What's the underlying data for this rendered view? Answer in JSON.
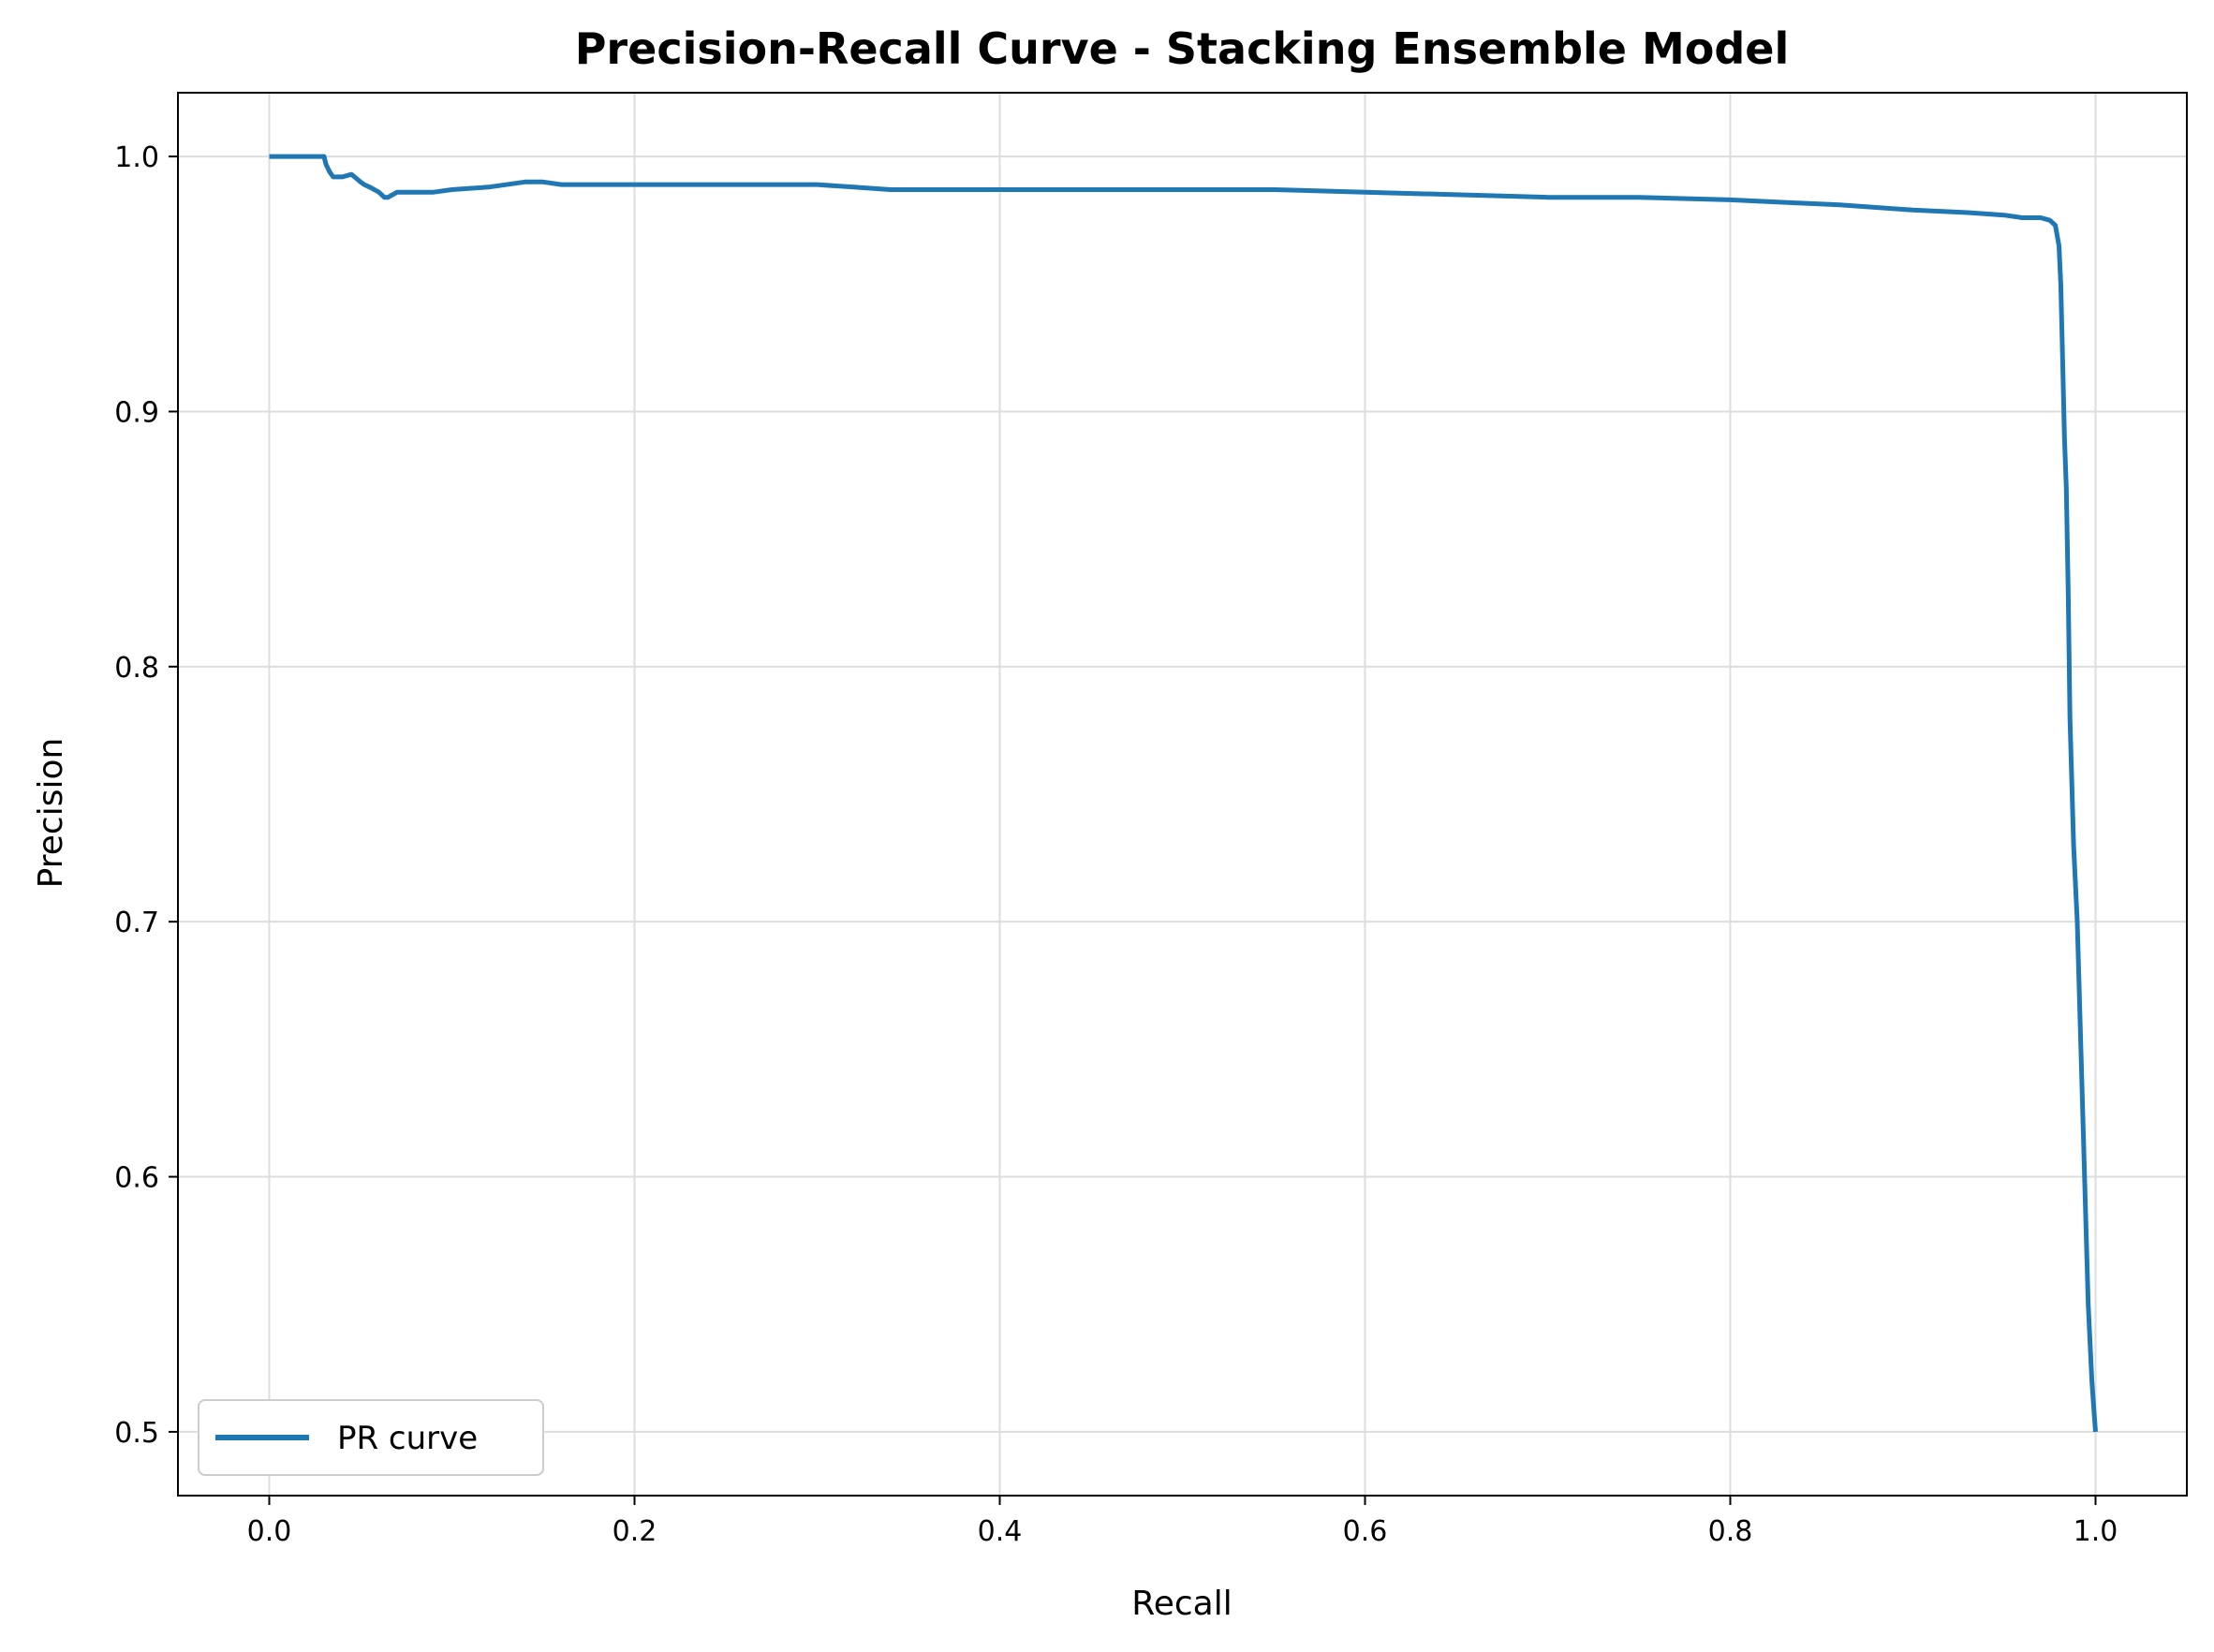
{
  "chart_data": {
    "type": "line",
    "title": "Precision-Recall Curve - Stacking Ensemble Model",
    "xlabel": "Recall",
    "ylabel": "Precision",
    "xlim": [
      -0.05,
      1.05
    ],
    "ylim": [
      0.475,
      1.025
    ],
    "x_ticks": [
      0.0,
      0.2,
      0.4,
      0.6,
      0.8,
      1.0
    ],
    "x_tick_labels": [
      "0.0",
      "0.2",
      "0.4",
      "0.6",
      "0.8",
      "1.0"
    ],
    "y_ticks": [
      0.5,
      0.6,
      0.7,
      0.8,
      0.9,
      1.0
    ],
    "y_tick_labels": [
      "0.5",
      "0.6",
      "0.7",
      "0.8",
      "0.9",
      "1.0"
    ],
    "grid": true,
    "legend": {
      "placement": "lower-left",
      "entries": [
        "PR curve"
      ]
    },
    "series": [
      {
        "name": "PR curve",
        "color": "#1f77b4",
        "x": [
          0.0,
          0.01,
          0.02,
          0.03,
          0.031,
          0.033,
          0.035,
          0.04,
          0.045,
          0.05,
          0.052,
          0.055,
          0.06,
          0.063,
          0.065,
          0.07,
          0.08,
          0.09,
          0.1,
          0.12,
          0.14,
          0.15,
          0.16,
          0.18,
          0.2,
          0.22,
          0.24,
          0.26,
          0.28,
          0.3,
          0.32,
          0.34,
          0.36,
          0.38,
          0.4,
          0.42,
          0.45,
          0.48,
          0.5,
          0.55,
          0.6,
          0.65,
          0.7,
          0.75,
          0.8,
          0.83,
          0.86,
          0.9,
          0.93,
          0.95,
          0.96,
          0.97,
          0.975,
          0.978,
          0.98,
          0.981,
          0.982,
          0.983,
          0.984,
          0.985,
          0.986,
          0.988,
          0.99,
          0.992,
          0.994,
          0.996,
          0.998,
          0.999,
          1.0
        ],
        "y": [
          1.0,
          1.0,
          1.0,
          1.0,
          0.997,
          0.994,
          0.992,
          0.992,
          0.993,
          0.99,
          0.989,
          0.988,
          0.986,
          0.984,
          0.984,
          0.986,
          0.986,
          0.986,
          0.987,
          0.988,
          0.99,
          0.99,
          0.989,
          0.989,
          0.989,
          0.989,
          0.989,
          0.989,
          0.989,
          0.989,
          0.988,
          0.987,
          0.987,
          0.987,
          0.987,
          0.987,
          0.987,
          0.987,
          0.987,
          0.987,
          0.986,
          0.985,
          0.984,
          0.984,
          0.983,
          0.982,
          0.981,
          0.979,
          0.978,
          0.977,
          0.976,
          0.976,
          0.975,
          0.973,
          0.965,
          0.95,
          0.92,
          0.89,
          0.87,
          0.83,
          0.78,
          0.73,
          0.7,
          0.65,
          0.6,
          0.55,
          0.52,
          0.51,
          0.5
        ]
      }
    ]
  }
}
